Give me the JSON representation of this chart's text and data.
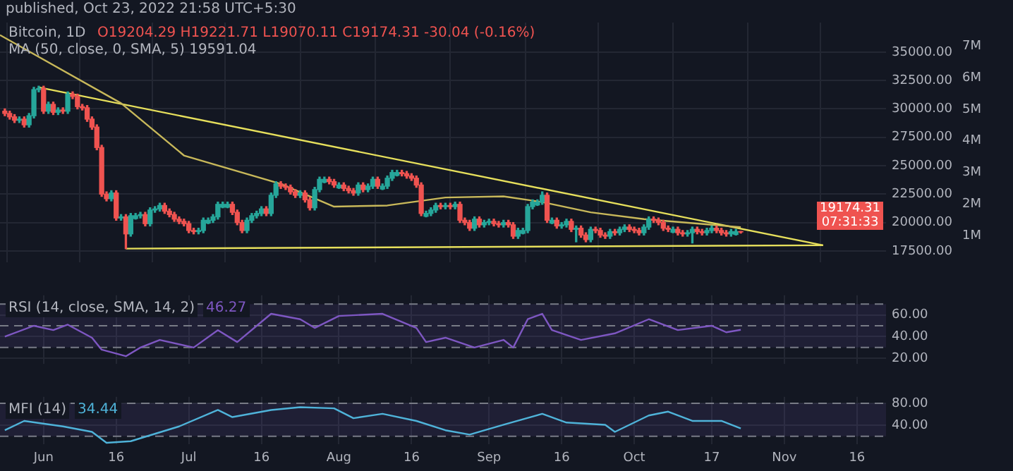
{
  "chart_data": [
    {
      "type": "candlestick",
      "title": "Bitcoin, 1D",
      "subtitle": "O19204.29 H19221.71 L19070.11 C19174.31 -30.04 (-0.16%)",
      "annotations": [
        "published, Oct 23, 2022 21:58 UTC+5:30",
        "MA (50, close, 0, SMA, 5) 19591.04",
        "19174.31",
        "07:31:33"
      ],
      "x": [
        "2022-05-24",
        "2022-05-25",
        "2022-05-26",
        "2022-05-27",
        "2022-05-28",
        "2022-05-29",
        "2022-05-30",
        "2022-05-31",
        "2022-06-01",
        "2022-06-02",
        "2022-06-03",
        "2022-06-04",
        "2022-06-05",
        "2022-06-06",
        "2022-06-07",
        "2022-06-08",
        "2022-06-09",
        "2022-06-10",
        "2022-06-11",
        "2022-06-12",
        "2022-06-13",
        "2022-06-14",
        "2022-06-15",
        "2022-06-16",
        "2022-06-17",
        "2022-06-18",
        "2022-06-19",
        "2022-06-20",
        "2022-06-21",
        "2022-06-22",
        "2022-06-23",
        "2022-06-24",
        "2022-06-25",
        "2022-06-26",
        "2022-06-27",
        "2022-06-28",
        "2022-06-29",
        "2022-06-30",
        "2022-07-01",
        "2022-07-02",
        "2022-07-03",
        "2022-07-04",
        "2022-07-05",
        "2022-07-06",
        "2022-07-07",
        "2022-07-08",
        "2022-07-09",
        "2022-07-10",
        "2022-07-11",
        "2022-07-12",
        "2022-07-13",
        "2022-07-14",
        "2022-07-15",
        "2022-07-16",
        "2022-07-17",
        "2022-07-18",
        "2022-07-19",
        "2022-07-20",
        "2022-07-21",
        "2022-07-22",
        "2022-07-23",
        "2022-07-24",
        "2022-07-25",
        "2022-07-26",
        "2022-07-27",
        "2022-07-28",
        "2022-07-29",
        "2022-07-30",
        "2022-07-31",
        "2022-08-01",
        "2022-08-02",
        "2022-08-03",
        "2022-08-04",
        "2022-08-05",
        "2022-08-06",
        "2022-08-07",
        "2022-08-08",
        "2022-08-09",
        "2022-08-10",
        "2022-08-11",
        "2022-08-12",
        "2022-08-13",
        "2022-08-14",
        "2022-08-15",
        "2022-08-16",
        "2022-08-17",
        "2022-08-18",
        "2022-08-19",
        "2022-08-20",
        "2022-08-21",
        "2022-08-22",
        "2022-08-23",
        "2022-08-24",
        "2022-08-25",
        "2022-08-26",
        "2022-08-27",
        "2022-08-28",
        "2022-08-29",
        "2022-08-30",
        "2022-08-31",
        "2022-09-01",
        "2022-09-02",
        "2022-09-03",
        "2022-09-04",
        "2022-09-05",
        "2022-09-06",
        "2022-09-07",
        "2022-09-08",
        "2022-09-09",
        "2022-09-10",
        "2022-09-11",
        "2022-09-12",
        "2022-09-13",
        "2022-09-14",
        "2022-09-15",
        "2022-09-16",
        "2022-09-17",
        "2022-09-18",
        "2022-09-19",
        "2022-09-20",
        "2022-09-21",
        "2022-09-22",
        "2022-09-23",
        "2022-09-24",
        "2022-09-25",
        "2022-09-26",
        "2022-09-27",
        "2022-09-28",
        "2022-09-29",
        "2022-09-30",
        "2022-10-01",
        "2022-10-02",
        "2022-10-03",
        "2022-10-04",
        "2022-10-05",
        "2022-10-06",
        "2022-10-07",
        "2022-10-08",
        "2022-10-09",
        "2022-10-10",
        "2022-10-11",
        "2022-10-12",
        "2022-10-13",
        "2022-10-14",
        "2022-10-15",
        "2022-10-16",
        "2022-10-17",
        "2022-10-18",
        "2022-10-19",
        "2022-10-20",
        "2022-10-21",
        "2022-10-22",
        "2022-10-23"
      ],
      "ohlc": [
        [
          29800,
          30000,
          29400,
          29600
        ],
        [
          29600,
          29800,
          29100,
          29300
        ],
        [
          29300,
          29500,
          28800,
          29000
        ],
        [
          29000,
          29300,
          28800,
          29100
        ],
        [
          29100,
          29300,
          28400,
          28600
        ],
        [
          28600,
          29600,
          28400,
          29400
        ],
        [
          29400,
          31900,
          29200,
          31700
        ],
        [
          31700,
          32000,
          31500,
          31800
        ],
        [
          31800,
          32000,
          29600,
          29800
        ],
        [
          29800,
          30600,
          29600,
          30400
        ],
        [
          30400,
          30600,
          29500,
          29700
        ],
        [
          29700,
          30100,
          29500,
          29900
        ],
        [
          29900,
          30100,
          29600,
          29800
        ],
        [
          29800,
          31500,
          29600,
          31300
        ],
        [
          31300,
          31500,
          30900,
          31100
        ],
        [
          31100,
          31300,
          30000,
          30200
        ],
        [
          30200,
          30400,
          29900,
          30100
        ],
        [
          30100,
          30300,
          28900,
          29100
        ],
        [
          29100,
          29300,
          28200,
          28400
        ],
        [
          28400,
          28600,
          26400,
          26600
        ],
        [
          26600,
          26800,
          22300,
          22500
        ],
        [
          22500,
          22700,
          21900,
          22100
        ],
        [
          22100,
          22800,
          21900,
          22600
        ],
        [
          22600,
          22800,
          20200,
          20400
        ],
        [
          20400,
          20700,
          20200,
          20500
        ],
        [
          20500,
          20700,
          17700,
          19000
        ],
        [
          19000,
          20800,
          18800,
          20600
        ],
        [
          20350,
          20800,
          20300,
          20600
        ],
        [
          20600,
          20900,
          20400,
          20700
        ],
        [
          20700,
          20900,
          19700,
          19900
        ],
        [
          19900,
          21300,
          19700,
          21100
        ],
        [
          21100,
          21400,
          20900,
          21200
        ],
        [
          21200,
          21700,
          21000,
          21500
        ],
        [
          21500,
          21700,
          20800,
          21000
        ],
        [
          21000,
          21200,
          20500,
          20700
        ],
        [
          20700,
          20900,
          20100,
          20300
        ],
        [
          20300,
          20500,
          19900,
          20100
        ],
        [
          20100,
          20300,
          19700,
          19900
        ],
        [
          19900,
          20100,
          19100,
          19300
        ],
        [
          19300,
          19500,
          19000,
          19200
        ],
        [
          19200,
          19500,
          19000,
          19300
        ],
        [
          19300,
          20400,
          19100,
          20200
        ],
        [
          19950,
          20400,
          19900,
          20200
        ],
        [
          20200,
          20700,
          20000,
          20500
        ],
        [
          20500,
          21800,
          20300,
          21600
        ],
        [
          21350,
          21800,
          21300,
          21600
        ],
        [
          21350,
          21800,
          21300,
          21600
        ],
        [
          21600,
          21800,
          20700,
          20900
        ],
        [
          20900,
          21100,
          19800,
          20000
        ],
        [
          20000,
          20200,
          19100,
          19300
        ],
        [
          19300,
          20400,
          19100,
          20200
        ],
        [
          20200,
          20800,
          20000,
          20600
        ],
        [
          20600,
          21000,
          20400,
          20800
        ],
        [
          20800,
          21400,
          20600,
          21200
        ],
        [
          21200,
          21400,
          20600,
          20800
        ],
        [
          20800,
          22600,
          20600,
          22400
        ],
        [
          22400,
          23600,
          22200,
          23400
        ],
        [
          23400,
          23600,
          23000,
          23200
        ],
        [
          23200,
          23400,
          22900,
          23100
        ],
        [
          23100,
          23300,
          22500,
          22700
        ],
        [
          22700,
          22900,
          22200,
          22400
        ],
        [
          22400,
          22800,
          22200,
          22600
        ],
        [
          22600,
          22800,
          21800,
          22000
        ],
        [
          22000,
          22200,
          21100,
          21300
        ],
        [
          21300,
          23100,
          21100,
          22900
        ],
        [
          22900,
          24000,
          22700,
          23800
        ],
        [
          23550,
          24000,
          23500,
          23800
        ],
        [
          23800,
          24000,
          23400,
          23600
        ],
        [
          23600,
          23800,
          23100,
          23300
        ],
        [
          23050,
          23500,
          23000,
          23300
        ],
        [
          23300,
          23500,
          22800,
          23000
        ],
        [
          23000,
          23200,
          22600,
          22800
        ],
        [
          22800,
          23000,
          22400,
          22600
        ],
        [
          22600,
          23500,
          22400,
          23300
        ],
        [
          23300,
          23500,
          22700,
          22900
        ],
        [
          22900,
          23400,
          22700,
          23200
        ],
        [
          23200,
          24000,
          23000,
          23800
        ],
        [
          23800,
          24000,
          23000,
          23200
        ],
        [
          22950,
          23400,
          22900,
          23200
        ],
        [
          23200,
          24100,
          23000,
          23900
        ],
        [
          23900,
          24600,
          23700,
          24400
        ],
        [
          24150,
          24600,
          24100,
          24400
        ],
        [
          24400,
          24600,
          24100,
          24300
        ],
        [
          24300,
          24500,
          23900,
          24100
        ],
        [
          24100,
          24300,
          23700,
          23900
        ],
        [
          23900,
          24100,
          23100,
          23300
        ],
        [
          23300,
          23500,
          20600,
          20800
        ],
        [
          20550,
          21000,
          20500,
          20800
        ],
        [
          20800,
          21300,
          20600,
          21100
        ],
        [
          21100,
          21700,
          20900,
          21500
        ],
        [
          21500,
          21700,
          21200,
          21400
        ],
        [
          21400,
          21700,
          21200,
          21500
        ],
        [
          21500,
          21700,
          21200,
          21400
        ],
        [
          21400,
          21800,
          21200,
          21600
        ],
        [
          21600,
          21800,
          20000,
          20200
        ],
        [
          20200,
          20400,
          19800,
          20000
        ],
        [
          20000,
          20200,
          19300,
          19500
        ],
        [
          19500,
          20500,
          19300,
          20300
        ],
        [
          20300,
          20500,
          19600,
          19800
        ],
        [
          19800,
          20200,
          19600,
          20000
        ],
        [
          20000,
          20300,
          19800,
          20100
        ],
        [
          20100,
          20300,
          19700,
          19900
        ],
        [
          19900,
          20100,
          19600,
          19800
        ],
        [
          19800,
          20200,
          19600,
          20000
        ],
        [
          20000,
          20200,
          19600,
          19800
        ],
        [
          19800,
          20000,
          18600,
          18800
        ],
        [
          18800,
          19500,
          18600,
          19300
        ],
        [
          19050,
          19500,
          19000,
          19300
        ],
        [
          19300,
          21600,
          19100,
          21400
        ],
        [
          21400,
          22000,
          21200,
          21800
        ],
        [
          21550,
          22000,
          21500,
          21800
        ],
        [
          21800,
          22700,
          21600,
          22400
        ],
        [
          22400,
          22600,
          20000,
          20200
        ],
        [
          19950,
          20400,
          19900,
          20200
        ],
        [
          20200,
          20400,
          19500,
          19700
        ],
        [
          19700,
          20000,
          19500,
          19800
        ],
        [
          19800,
          20300,
          19600,
          20100
        ],
        [
          20100,
          20300,
          19200,
          19400
        ],
        [
          19400,
          19700,
          18300,
          19500
        ],
        [
          19500,
          19700,
          18700,
          18900
        ],
        [
          18900,
          19100,
          18300,
          18500
        ],
        [
          18500,
          19600,
          18300,
          19400
        ],
        [
          19400,
          19600,
          19100,
          19300
        ],
        [
          19300,
          19500,
          18700,
          18900
        ],
        [
          18900,
          19100,
          18600,
          18800
        ],
        [
          18800,
          19400,
          18600,
          19200
        ],
        [
          19200,
          19400,
          18900,
          19100
        ],
        [
          19100,
          19600,
          18900,
          19400
        ],
        [
          19400,
          19800,
          19200,
          19600
        ],
        [
          19600,
          19800,
          19200,
          19400
        ],
        [
          19400,
          19600,
          19100,
          19300
        ],
        [
          19300,
          19500,
          18900,
          19100
        ],
        [
          19100,
          19800,
          18900,
          19600
        ],
        [
          19600,
          20500,
          19400,
          20300
        ],
        [
          20300,
          20500,
          20000,
          20200
        ],
        [
          20200,
          20400,
          19800,
          20000
        ],
        [
          20000,
          20200,
          19300,
          19500
        ],
        [
          19500,
          19700,
          19200,
          19400
        ],
        [
          19150,
          19600,
          19100,
          19400
        ],
        [
          19400,
          19600,
          18900,
          19100
        ],
        [
          19100,
          19300,
          18800,
          19000
        ],
        [
          19000,
          19300,
          18800,
          19100
        ],
        [
          19100,
          19600,
          18200,
          19400
        ],
        [
          19400,
          19600,
          19000,
          19200
        ],
        [
          19200,
          19400,
          18900,
          19100
        ],
        [
          19100,
          19500,
          18900,
          19300
        ],
        [
          19300,
          19700,
          19100,
          19500
        ],
        [
          19500,
          19700,
          19100,
          19300
        ],
        [
          19300,
          19500,
          18900,
          19100
        ],
        [
          19100,
          19300,
          18800,
          19000
        ],
        [
          19000,
          19400,
          18800,
          19200
        ],
        [
          18950,
          19400,
          18900,
          19200
        ],
        [
          19204.29,
          19221.71,
          19070.11,
          19174.31
        ]
      ],
      "series": [
        {
          "type": "line",
          "color": "#c8b85a",
          "x": [
            "2022-05-23",
            "2022-06-17",
            "2022-06-30",
            "2022-07-20",
            "2022-07-31",
            "2022-08-11",
            "2022-08-23",
            "2022-09-04",
            "2022-09-12",
            "2022-09-22",
            "2022-10-03",
            "2022-10-23"
          ],
          "values": [
            36500,
            30500,
            25900,
            23400,
            21400,
            21500,
            22200,
            22300,
            21800,
            20900,
            20300,
            19591.04
          ]
        },
        {
          "type": "line",
          "color": "#e6df5c",
          "x": [
            "2022-05-31",
            "2022-11-09"
          ],
          "values": [
            31900,
            18000
          ]
        },
        {
          "type": "line",
          "color": "#e6df5c",
          "x": [
            "2022-06-18",
            "2022-11-09"
          ],
          "values": [
            17700,
            18000
          ]
        }
      ],
      "xlim": [
        "2022-05-23",
        "2022-11-22"
      ],
      "xticks": [
        {
          "value": "2022-06-01",
          "label": null
        },
        {
          "value": "2022-06-16",
          "label": null
        },
        {
          "value": "2022-07-01",
          "label": null
        },
        {
          "value": "2022-07-16",
          "label": null
        },
        {
          "value": "2022-08-01",
          "label": null
        },
        {
          "value": "2022-08-16",
          "label": null
        },
        {
          "value": "2022-09-01",
          "label": null
        },
        {
          "value": "2022-09-16",
          "label": null
        },
        {
          "value": "2022-10-01",
          "label": null
        },
        {
          "value": "2022-10-17",
          "label": null
        },
        {
          "value": "2022-11-01",
          "label": null
        },
        {
          "value": "2022-11-16",
          "label": null
        }
      ],
      "ylim": [
        16500,
        37600
      ],
      "yticks": [
        {
          "value": 17500,
          "label": "17500.00"
        },
        {
          "value": 20000,
          "label": "20000.00"
        },
        {
          "value": 22500,
          "label": "22500.00"
        },
        {
          "value": 25000,
          "label": "25000.00"
        },
        {
          "value": 27500,
          "label": "27500.00"
        },
        {
          "value": 30000,
          "label": "30000.00"
        },
        {
          "value": 32500,
          "label": "32500.00"
        },
        {
          "value": 35000,
          "label": "35000.00"
        }
      ],
      "y2lim": [
        150000,
        7750000
      ],
      "y2ticks": [
        {
          "value": 1000000,
          "label": "1M"
        },
        {
          "value": 2000000,
          "label": "2M"
        },
        {
          "value": 3000000,
          "label": "3M"
        },
        {
          "value": 4000000,
          "label": "4M"
        },
        {
          "value": 5000000,
          "label": "5M"
        },
        {
          "value": 6000000,
          "label": "6M"
        },
        {
          "value": 7000000,
          "label": "7M"
        }
      ],
      "grid": true,
      "tick_labels": "y"
    },
    {
      "type": "line",
      "title": "RSI (14, close, SMA, 14, 2)",
      "annotations": [
        "46.27"
      ],
      "series": [
        {
          "color": "#7e57c2",
          "x": [
            "2022-05-24",
            "2022-05-30",
            "2022-06-03",
            "2022-06-06",
            "2022-06-11",
            "2022-06-13",
            "2022-06-18",
            "2022-06-21",
            "2022-06-25",
            "2022-07-02",
            "2022-07-07",
            "2022-07-11",
            "2022-07-18",
            "2022-07-24",
            "2022-07-27",
            "2022-08-01",
            "2022-08-10",
            "2022-08-17",
            "2022-08-19",
            "2022-08-23",
            "2022-08-29",
            "2022-09-04",
            "2022-09-06",
            "2022-09-09",
            "2022-09-12",
            "2022-09-14",
            "2022-09-20",
            "2022-09-27",
            "2022-10-04",
            "2022-10-10",
            "2022-10-17",
            "2022-10-20",
            "2022-10-23"
          ],
          "values": [
            40,
            50,
            46,
            51,
            39,
            28,
            22,
            30,
            37,
            30,
            46,
            35,
            61,
            56,
            48,
            59,
            61,
            48,
            35,
            39,
            30,
            37,
            30,
            56,
            61,
            46,
            37,
            43,
            56,
            46,
            50,
            44,
            46.27
          ]
        }
      ],
      "bands": [
        {
          "axis": "y",
          "from": 30,
          "to": 70,
          "color": "#7e57c2"
        }
      ],
      "ref_lines": [
        {
          "axis": "y",
          "value": 70
        },
        {
          "axis": "y",
          "value": 50
        },
        {
          "axis": "y",
          "value": 30
        }
      ],
      "xlim": [
        "2022-05-23",
        "2022-11-22"
      ],
      "xticks": [
        {
          "value": "2022-06-01",
          "label": null
        },
        {
          "value": "2022-06-16",
          "label": null
        },
        {
          "value": "2022-07-01",
          "label": null
        },
        {
          "value": "2022-07-16",
          "label": null
        },
        {
          "value": "2022-08-01",
          "label": null
        },
        {
          "value": "2022-08-16",
          "label": null
        },
        {
          "value": "2022-09-01",
          "label": null
        },
        {
          "value": "2022-09-16",
          "label": null
        },
        {
          "value": "2022-10-01",
          "label": null
        },
        {
          "value": "2022-10-17",
          "label": null
        },
        {
          "value": "2022-11-01",
          "label": null
        },
        {
          "value": "2022-11-16",
          "label": null
        }
      ],
      "ylim": [
        15,
        78
      ],
      "yticks": [
        {
          "value": 20,
          "label": "20.00"
        },
        {
          "value": 40,
          "label": "40.00"
        },
        {
          "value": 60,
          "label": "60.00"
        }
      ],
      "grid": true,
      "tick_labels": "y"
    },
    {
      "type": "line",
      "title": "MFI (14)",
      "annotations": [
        "34.44"
      ],
      "series": [
        {
          "color": "#4fb3d9",
          "x": [
            "2022-05-24",
            "2022-05-28",
            "2022-06-05",
            "2022-06-11",
            "2022-06-14",
            "2022-06-19",
            "2022-06-29",
            "2022-07-07",
            "2022-07-10",
            "2022-07-18",
            "2022-07-24",
            "2022-07-31",
            "2022-08-04",
            "2022-08-10",
            "2022-08-17",
            "2022-08-23",
            "2022-08-28",
            "2022-09-04",
            "2022-09-12",
            "2022-09-17",
            "2022-09-25",
            "2022-09-27",
            "2022-10-04",
            "2022-10-08",
            "2022-10-13",
            "2022-10-19",
            "2022-10-23"
          ],
          "values": [
            31,
            48,
            38,
            28,
            8,
            11,
            38,
            68,
            55,
            68,
            73,
            71,
            53,
            61,
            48,
            31,
            23,
            41,
            61,
            45,
            41,
            28,
            58,
            65,
            48,
            48,
            34.44
          ]
        }
      ],
      "bands": [
        {
          "axis": "y",
          "from": 20,
          "to": 80,
          "color": "#7e57c2"
        }
      ],
      "ref_lines": [
        {
          "axis": "y",
          "value": 80
        },
        {
          "axis": "y",
          "value": 20
        }
      ],
      "xlim": [
        "2022-05-23",
        "2022-11-22"
      ],
      "xticks": [
        {
          "value": "2022-06-01",
          "label": "Jun"
        },
        {
          "value": "2022-06-16",
          "label": "16"
        },
        {
          "value": "2022-07-01",
          "label": "Jul"
        },
        {
          "value": "2022-07-16",
          "label": "16"
        },
        {
          "value": "2022-08-01",
          "label": "Aug"
        },
        {
          "value": "2022-08-16",
          "label": "16"
        },
        {
          "value": "2022-09-01",
          "label": "Sep"
        },
        {
          "value": "2022-09-16",
          "label": "16"
        },
        {
          "value": "2022-10-01",
          "label": "Oct"
        },
        {
          "value": "2022-10-17",
          "label": "17"
        },
        {
          "value": "2022-11-01",
          "label": "Nov"
        },
        {
          "value": "2022-11-16",
          "label": "16"
        }
      ],
      "ylim": [
        5,
        92
      ],
      "yticks": [
        {
          "value": 40,
          "label": "40.00"
        },
        {
          "value": 80,
          "label": "80.00"
        }
      ],
      "grid": true
    }
  ]
}
